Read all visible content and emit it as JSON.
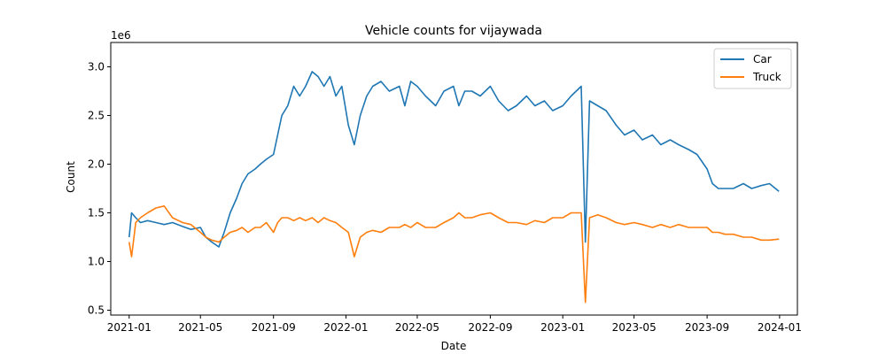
{
  "chart_data": {
    "type": "line",
    "title": "Vehicle counts for vijaywada",
    "xlabel": "Date",
    "ylabel": "Count",
    "y_offset_label": "1e6",
    "x_range": [
      "2020-12-01",
      "2024-01-31"
    ],
    "ylim": [
      0.45,
      3.25
    ],
    "x_ticks": [
      "2021-01",
      "2021-05",
      "2021-09",
      "2022-01",
      "2022-05",
      "2022-09",
      "2023-01",
      "2023-05",
      "2023-09",
      "2024-01"
    ],
    "y_ticks": [
      "0.5",
      "1.0",
      "1.5",
      "2.0",
      "2.5",
      "3.0"
    ],
    "y_tick_values": [
      0.5,
      1.0,
      1.5,
      2.0,
      2.5,
      3.0
    ],
    "legend_position": "top-right",
    "grid": false,
    "series": [
      {
        "name": "Car",
        "color": "#1f77b4",
        "x": [
          "2021-01-01",
          "2021-01-05",
          "2021-01-12",
          "2021-01-20",
          "2021-02-01",
          "2021-02-15",
          "2021-03-01",
          "2021-03-15",
          "2021-04-01",
          "2021-04-15",
          "2021-05-01",
          "2021-05-10",
          "2021-05-20",
          "2021-06-01",
          "2021-06-10",
          "2021-06-20",
          "2021-07-01",
          "2021-07-10",
          "2021-07-20",
          "2021-08-01",
          "2021-08-10",
          "2021-08-20",
          "2021-09-01",
          "2021-09-08",
          "2021-09-15",
          "2021-09-25",
          "2021-10-05",
          "2021-10-15",
          "2021-10-25",
          "2021-11-05",
          "2021-11-15",
          "2021-11-25",
          "2021-12-05",
          "2021-12-15",
          "2021-12-25",
          "2022-01-05",
          "2022-01-15",
          "2022-01-25",
          "2022-02-05",
          "2022-02-15",
          "2022-03-01",
          "2022-03-15",
          "2022-04-01",
          "2022-04-10",
          "2022-04-20",
          "2022-05-01",
          "2022-05-15",
          "2022-06-01",
          "2022-06-15",
          "2022-07-01",
          "2022-07-10",
          "2022-07-20",
          "2022-08-01",
          "2022-08-15",
          "2022-09-01",
          "2022-09-15",
          "2022-10-01",
          "2022-10-15",
          "2022-11-01",
          "2022-11-15",
          "2022-12-01",
          "2022-12-15",
          "2023-01-01",
          "2023-01-15",
          "2023-02-01",
          "2023-02-08",
          "2023-02-15",
          "2023-03-01",
          "2023-03-15",
          "2023-04-01",
          "2023-04-15",
          "2023-05-01",
          "2023-05-15",
          "2023-06-01",
          "2023-06-15",
          "2023-07-01",
          "2023-07-15",
          "2023-08-01",
          "2023-08-15",
          "2023-09-01",
          "2023-09-10",
          "2023-09-20",
          "2023-10-01",
          "2023-10-15",
          "2023-11-01",
          "2023-11-15",
          "2023-12-01",
          "2023-12-15",
          "2023-12-31"
        ],
        "values": [
          1.25,
          1.5,
          1.45,
          1.4,
          1.42,
          1.4,
          1.38,
          1.4,
          1.36,
          1.33,
          1.35,
          1.25,
          1.2,
          1.15,
          1.3,
          1.5,
          1.65,
          1.8,
          1.9,
          1.95,
          2.0,
          2.05,
          2.1,
          2.3,
          2.5,
          2.6,
          2.8,
          2.7,
          2.8,
          2.95,
          2.9,
          2.8,
          2.9,
          2.7,
          2.8,
          2.4,
          2.2,
          2.5,
          2.7,
          2.8,
          2.85,
          2.75,
          2.8,
          2.6,
          2.85,
          2.8,
          2.7,
          2.6,
          2.75,
          2.8,
          2.6,
          2.75,
          2.75,
          2.7,
          2.8,
          2.65,
          2.55,
          2.6,
          2.7,
          2.6,
          2.65,
          2.55,
          2.6,
          2.7,
          2.8,
          1.2,
          2.65,
          2.6,
          2.55,
          2.4,
          2.3,
          2.35,
          2.25,
          2.3,
          2.2,
          2.25,
          2.2,
          2.15,
          2.1,
          1.95,
          1.8,
          1.75,
          1.75,
          1.75,
          1.8,
          1.75,
          1.78,
          1.8,
          1.72
        ]
      },
      {
        "name": "Truck",
        "color": "#ff7f0e",
        "x": [
          "2021-01-01",
          "2021-01-05",
          "2021-01-12",
          "2021-01-20",
          "2021-02-01",
          "2021-02-15",
          "2021-03-01",
          "2021-03-15",
          "2021-04-01",
          "2021-04-15",
          "2021-05-01",
          "2021-05-10",
          "2021-05-20",
          "2021-06-01",
          "2021-06-10",
          "2021-06-20",
          "2021-07-01",
          "2021-07-10",
          "2021-07-20",
          "2021-08-01",
          "2021-08-10",
          "2021-08-20",
          "2021-09-01",
          "2021-09-08",
          "2021-09-15",
          "2021-09-25",
          "2021-10-05",
          "2021-10-15",
          "2021-10-25",
          "2021-11-05",
          "2021-11-15",
          "2021-11-25",
          "2021-12-05",
          "2021-12-15",
          "2021-12-25",
          "2022-01-05",
          "2022-01-15",
          "2022-01-25",
          "2022-02-05",
          "2022-02-15",
          "2022-03-01",
          "2022-03-15",
          "2022-04-01",
          "2022-04-10",
          "2022-04-20",
          "2022-05-01",
          "2022-05-15",
          "2022-06-01",
          "2022-06-15",
          "2022-07-01",
          "2022-07-10",
          "2022-07-20",
          "2022-08-01",
          "2022-08-15",
          "2022-09-01",
          "2022-09-15",
          "2022-10-01",
          "2022-10-15",
          "2022-11-01",
          "2022-11-15",
          "2022-12-01",
          "2022-12-15",
          "2023-01-01",
          "2023-01-15",
          "2023-02-01",
          "2023-02-08",
          "2023-02-15",
          "2023-03-01",
          "2023-03-15",
          "2023-04-01",
          "2023-04-15",
          "2023-05-01",
          "2023-05-15",
          "2023-06-01",
          "2023-06-15",
          "2023-07-01",
          "2023-07-15",
          "2023-08-01",
          "2023-08-15",
          "2023-09-01",
          "2023-09-10",
          "2023-09-20",
          "2023-10-01",
          "2023-10-15",
          "2023-11-01",
          "2023-11-15",
          "2023-12-01",
          "2023-12-15",
          "2023-12-31"
        ],
        "values": [
          1.2,
          1.05,
          1.4,
          1.45,
          1.5,
          1.55,
          1.57,
          1.45,
          1.4,
          1.38,
          1.3,
          1.25,
          1.22,
          1.2,
          1.25,
          1.3,
          1.32,
          1.35,
          1.3,
          1.35,
          1.35,
          1.4,
          1.3,
          1.4,
          1.45,
          1.45,
          1.42,
          1.45,
          1.42,
          1.45,
          1.4,
          1.45,
          1.42,
          1.4,
          1.35,
          1.3,
          1.05,
          1.25,
          1.3,
          1.32,
          1.3,
          1.35,
          1.35,
          1.38,
          1.35,
          1.4,
          1.35,
          1.35,
          1.4,
          1.45,
          1.5,
          1.45,
          1.45,
          1.48,
          1.5,
          1.45,
          1.4,
          1.4,
          1.38,
          1.42,
          1.4,
          1.45,
          1.45,
          1.5,
          1.5,
          0.58,
          1.45,
          1.48,
          1.45,
          1.4,
          1.38,
          1.4,
          1.38,
          1.35,
          1.38,
          1.35,
          1.38,
          1.35,
          1.35,
          1.35,
          1.3,
          1.3,
          1.28,
          1.28,
          1.25,
          1.25,
          1.22,
          1.22,
          1.23
        ]
      }
    ]
  }
}
